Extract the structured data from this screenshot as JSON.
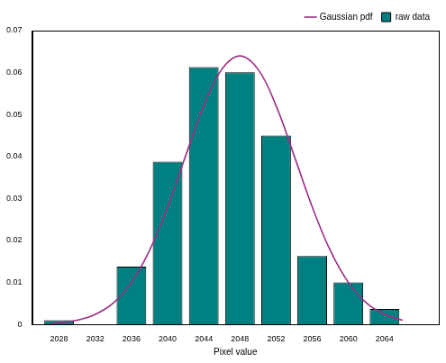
{
  "chart_data": {
    "type": "bar",
    "x_label": "Pixel value",
    "x": [
      2028,
      2032,
      2036,
      2040,
      2044,
      2048,
      2052,
      2056,
      2060,
      2064
    ],
    "series": [
      {
        "name": "raw data",
        "type": "bar",
        "color": "#008080",
        "values": [
          0.001,
          0,
          0.0138,
          0.0388,
          0.0613,
          0.0601,
          0.045,
          0.0163,
          0.01,
          0.0037
        ]
      },
      {
        "name": "Gaussian pdf",
        "type": "line",
        "color": "#9b2d86",
        "line_style": "solid",
        "x": [
          2027,
          2028,
          2030,
          2032,
          2034,
          2036,
          2038,
          2040,
          2042,
          2044,
          2046,
          2048,
          2050,
          2052,
          2054,
          2056,
          2058,
          2060,
          2062,
          2064,
          2066
        ],
        "values": [
          0.0002,
          0.0004,
          0.001,
          0.0024,
          0.0051,
          0.01,
          0.0176,
          0.028,
          0.0402,
          0.0521,
          0.0608,
          0.064,
          0.0608,
          0.0521,
          0.0402,
          0.028,
          0.0176,
          0.01,
          0.0051,
          0.0024,
          0.001
        ]
      }
    ],
    "xlim": [
      2025,
      2070
    ],
    "xticks": [
      2028,
      2032,
      2036,
      2040,
      2044,
      2048,
      2052,
      2056,
      2060,
      2064
    ],
    "ylim": [
      0,
      0.07
    ],
    "yticks": [
      0,
      0.01,
      0.02,
      0.03,
      0.04,
      0.05,
      0.06,
      0.07
    ],
    "grid": false,
    "legend": "top right"
  }
}
